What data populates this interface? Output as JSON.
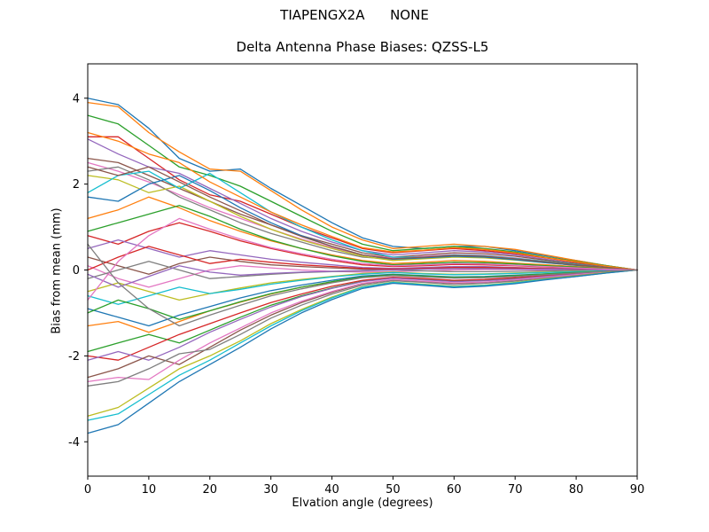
{
  "figure": {
    "suptitle": "TIAPENGX2A      NONE"
  },
  "chart_data": {
    "type": "line",
    "title": "Delta Antenna Phase Biases: QZSS-L5",
    "suptitle": "TIAPENGX2A      NONE",
    "xlabel": "Elvation angle (degrees)",
    "ylabel": "Bias from mean (mm)",
    "xlim": [
      0,
      90
    ],
    "ylim": [
      -4.8,
      4.8
    ],
    "xticks": [
      0,
      10,
      20,
      30,
      40,
      50,
      60,
      70,
      80,
      90
    ],
    "yticks": [
      -4,
      -2,
      0,
      2,
      4
    ],
    "grid": false,
    "legend": "none",
    "x": [
      0,
      5,
      10,
      15,
      20,
      25,
      30,
      35,
      40,
      45,
      50,
      55,
      60,
      65,
      70,
      75,
      80,
      85,
      90
    ],
    "series": [
      {
        "color": "#1f77b4",
        "values": [
          4.0,
          3.85,
          3.3,
          2.6,
          2.3,
          2.35,
          1.9,
          1.5,
          1.1,
          0.75,
          0.55,
          0.5,
          0.55,
          0.55,
          0.45,
          0.33,
          0.22,
          0.1,
          0.0
        ]
      },
      {
        "color": "#ff7f0e",
        "values": [
          3.9,
          3.8,
          3.2,
          2.75,
          2.35,
          2.3,
          1.85,
          1.4,
          1.0,
          0.7,
          0.5,
          0.55,
          0.6,
          0.55,
          0.48,
          0.35,
          0.22,
          0.1,
          0.0
        ]
      },
      {
        "color": "#2ca02c",
        "values": [
          3.6,
          3.4,
          2.9,
          2.4,
          2.2,
          1.95,
          1.6,
          1.25,
          0.9,
          0.6,
          0.45,
          0.5,
          0.55,
          0.5,
          0.42,
          0.3,
          0.2,
          0.1,
          0.0
        ]
      },
      {
        "color": "#d62728",
        "values": [
          3.1,
          3.1,
          2.6,
          2.1,
          1.75,
          1.6,
          1.3,
          1.0,
          0.75,
          0.5,
          0.4,
          0.45,
          0.5,
          0.45,
          0.38,
          0.28,
          0.18,
          0.08,
          0.0
        ]
      },
      {
        "color": "#9467bd",
        "values": [
          3.05,
          2.7,
          2.4,
          2.25,
          1.9,
          1.55,
          1.2,
          0.9,
          0.65,
          0.45,
          0.35,
          0.4,
          0.45,
          0.42,
          0.35,
          0.25,
          0.15,
          0.07,
          0.0
        ]
      },
      {
        "color": "#8c564b",
        "values": [
          2.6,
          2.5,
          2.2,
          1.9,
          1.6,
          1.3,
          1.05,
          0.8,
          0.6,
          0.4,
          0.3,
          0.35,
          0.4,
          0.38,
          0.32,
          0.23,
          0.15,
          0.07,
          0.0
        ]
      },
      {
        "color": "#e377c2",
        "values": [
          2.5,
          2.3,
          2.05,
          1.75,
          1.45,
          1.2,
          0.95,
          0.72,
          0.52,
          0.35,
          0.28,
          0.32,
          0.36,
          0.34,
          0.28,
          0.2,
          0.13,
          0.06,
          0.0
        ]
      },
      {
        "color": "#7f7f7f",
        "values": [
          2.3,
          2.4,
          2.1,
          1.7,
          1.4,
          1.1,
          0.85,
          0.65,
          0.45,
          0.3,
          0.25,
          0.28,
          0.32,
          0.3,
          0.25,
          0.18,
          0.12,
          0.05,
          0.0
        ]
      },
      {
        "color": "#bcbd22",
        "values": [
          2.2,
          2.1,
          1.8,
          1.95,
          1.6,
          1.25,
          0.95,
          0.7,
          0.5,
          0.32,
          0.22,
          0.26,
          0.3,
          0.28,
          0.23,
          0.17,
          0.11,
          0.05,
          0.0
        ]
      },
      {
        "color": "#17becf",
        "values": [
          1.8,
          2.2,
          2.3,
          1.9,
          2.25,
          1.8,
          1.35,
          1.0,
          0.7,
          0.45,
          0.3,
          0.3,
          0.35,
          0.33,
          0.27,
          0.2,
          0.13,
          0.06,
          0.0
        ]
      },
      {
        "color": "#1f77b4",
        "values": [
          1.7,
          1.6,
          2.0,
          2.2,
          1.85,
          1.45,
          1.1,
          0.8,
          0.55,
          0.35,
          0.25,
          0.28,
          0.32,
          0.3,
          0.24,
          0.17,
          0.11,
          0.05,
          0.0
        ]
      },
      {
        "color": "#ff7f0e",
        "values": [
          1.2,
          1.4,
          1.7,
          1.45,
          1.15,
          0.9,
          0.68,
          0.5,
          0.35,
          0.22,
          0.15,
          0.18,
          0.22,
          0.2,
          0.16,
          0.12,
          0.08,
          0.04,
          0.0
        ]
      },
      {
        "color": "#2ca02c",
        "values": [
          0.9,
          1.1,
          1.3,
          1.5,
          1.25,
          0.95,
          0.7,
          0.5,
          0.33,
          0.2,
          0.12,
          0.15,
          0.18,
          0.17,
          0.14,
          0.1,
          0.07,
          0.03,
          0.0
        ]
      },
      {
        "color": "#d62728",
        "values": [
          0.8,
          0.6,
          0.9,
          1.1,
          0.9,
          0.68,
          0.5,
          0.35,
          0.22,
          0.12,
          0.08,
          0.1,
          0.13,
          0.12,
          0.1,
          0.07,
          0.05,
          0.02,
          0.0
        ]
      },
      {
        "color": "#9467bd",
        "values": [
          0.5,
          0.7,
          0.5,
          0.3,
          0.45,
          0.35,
          0.25,
          0.18,
          0.12,
          0.06,
          0.04,
          0.06,
          0.08,
          0.08,
          0.06,
          0.04,
          0.03,
          0.01,
          0.0
        ]
      },
      {
        "color": "#8c564b",
        "values": [
          0.3,
          0.1,
          -0.1,
          0.15,
          0.3,
          0.2,
          0.12,
          0.08,
          0.05,
          0.02,
          0.0,
          0.02,
          0.04,
          0.04,
          0.03,
          0.02,
          0.01,
          0.01,
          0.0
        ]
      },
      {
        "color": "#e377c2",
        "values": [
          0.1,
          -0.2,
          -0.4,
          -0.2,
          0.0,
          0.1,
          0.05,
          0.0,
          -0.03,
          -0.05,
          -0.04,
          -0.02,
          0.0,
          0.01,
          0.01,
          0.0,
          0.0,
          0.0,
          0.0
        ]
      },
      {
        "color": "#7f7f7f",
        "values": [
          -0.2,
          0.0,
          0.2,
          0.0,
          -0.2,
          -0.15,
          -0.1,
          -0.06,
          -0.04,
          -0.02,
          0.0,
          -0.02,
          -0.04,
          -0.04,
          -0.03,
          -0.02,
          -0.01,
          0.0,
          0.0
        ]
      },
      {
        "color": "#bcbd22",
        "values": [
          -0.5,
          -0.3,
          -0.5,
          -0.7,
          -0.55,
          -0.42,
          -0.3,
          -0.22,
          -0.15,
          -0.08,
          -0.05,
          -0.08,
          -0.1,
          -0.09,
          -0.07,
          -0.05,
          -0.03,
          -0.01,
          0.0
        ]
      },
      {
        "color": "#17becf",
        "values": [
          -0.6,
          -0.8,
          -0.6,
          -0.4,
          -0.55,
          -0.45,
          -0.33,
          -0.24,
          -0.16,
          -0.1,
          -0.06,
          -0.09,
          -0.11,
          -0.1,
          -0.08,
          -0.06,
          -0.04,
          -0.02,
          0.0
        ]
      },
      {
        "color": "#1f77b4",
        "values": [
          -0.9,
          -1.1,
          -1.3,
          -1.05,
          -0.85,
          -0.65,
          -0.48,
          -0.35,
          -0.24,
          -0.14,
          -0.1,
          -0.13,
          -0.16,
          -0.15,
          -0.12,
          -0.09,
          -0.06,
          -0.03,
          0.0
        ]
      },
      {
        "color": "#ff7f0e",
        "values": [
          -1.3,
          -1.2,
          -1.45,
          -1.2,
          -0.95,
          -0.75,
          -0.56,
          -0.4,
          -0.28,
          -0.17,
          -0.12,
          -0.15,
          -0.18,
          -0.17,
          -0.14,
          -0.1,
          -0.07,
          -0.03,
          0.0
        ]
      },
      {
        "color": "#2ca02c",
        "values": [
          -1.9,
          -1.7,
          -1.5,
          -1.7,
          -1.4,
          -1.1,
          -0.82,
          -0.6,
          -0.42,
          -0.26,
          -0.18,
          -0.22,
          -0.26,
          -0.24,
          -0.2,
          -0.15,
          -0.1,
          -0.04,
          0.0
        ]
      },
      {
        "color": "#d62728",
        "values": [
          -2.0,
          -2.1,
          -1.8,
          -1.5,
          -1.25,
          -1.0,
          -0.76,
          -0.56,
          -0.38,
          -0.24,
          -0.17,
          -0.2,
          -0.24,
          -0.22,
          -0.18,
          -0.13,
          -0.09,
          -0.04,
          0.0
        ]
      },
      {
        "color": "#9467bd",
        "values": [
          -2.1,
          -1.9,
          -2.1,
          -1.8,
          -1.45,
          -1.15,
          -0.86,
          -0.62,
          -0.43,
          -0.27,
          -0.19,
          -0.23,
          -0.27,
          -0.25,
          -0.21,
          -0.15,
          -0.1,
          -0.05,
          0.0
        ]
      },
      {
        "color": "#8c564b",
        "values": [
          -2.5,
          -2.3,
          -2.0,
          -2.2,
          -1.8,
          -1.4,
          -1.05,
          -0.76,
          -0.52,
          -0.32,
          -0.23,
          -0.27,
          -0.31,
          -0.29,
          -0.24,
          -0.18,
          -0.12,
          -0.05,
          0.0
        ]
      },
      {
        "color": "#e377c2",
        "values": [
          -2.6,
          -2.5,
          -2.55,
          -2.1,
          -1.7,
          -1.35,
          -1.0,
          -0.73,
          -0.5,
          -0.31,
          -0.22,
          -0.26,
          -0.3,
          -0.28,
          -0.23,
          -0.17,
          -0.11,
          -0.05,
          0.0
        ]
      },
      {
        "color": "#7f7f7f",
        "values": [
          -2.7,
          -2.6,
          -2.3,
          -1.95,
          -1.85,
          -1.5,
          -1.12,
          -0.82,
          -0.56,
          -0.35,
          -0.25,
          -0.29,
          -0.34,
          -0.31,
          -0.26,
          -0.19,
          -0.13,
          -0.06,
          0.0
        ]
      },
      {
        "color": "#bcbd22",
        "values": [
          -3.4,
          -3.2,
          -2.75,
          -2.3,
          -2.0,
          -1.65,
          -1.25,
          -0.92,
          -0.63,
          -0.39,
          -0.28,
          -0.33,
          -0.38,
          -0.35,
          -0.29,
          -0.21,
          -0.14,
          -0.06,
          0.0
        ]
      },
      {
        "color": "#17becf",
        "values": [
          -3.5,
          -3.35,
          -2.9,
          -2.45,
          -2.1,
          -1.7,
          -1.3,
          -0.95,
          -0.65,
          -0.4,
          -0.29,
          -0.34,
          -0.39,
          -0.36,
          -0.3,
          -0.22,
          -0.15,
          -0.07,
          0.0
        ]
      },
      {
        "color": "#1f77b4",
        "values": [
          -3.8,
          -3.6,
          -3.1,
          -2.6,
          -2.2,
          -1.8,
          -1.37,
          -1.0,
          -0.69,
          -0.43,
          -0.31,
          -0.36,
          -0.41,
          -0.38,
          -0.32,
          -0.23,
          -0.15,
          -0.07,
          0.0
        ]
      },
      {
        "color": "#ff7f0e",
        "values": [
          3.2,
          3.0,
          2.7,
          2.5,
          2.05,
          1.7,
          1.35,
          1.05,
          0.78,
          0.52,
          0.42,
          0.46,
          0.52,
          0.48,
          0.4,
          0.29,
          0.19,
          0.09,
          0.0
        ]
      },
      {
        "color": "#2ca02c",
        "values": [
          -1.0,
          -0.7,
          -0.9,
          -1.15,
          -0.95,
          -0.74,
          -0.55,
          -0.4,
          -0.27,
          -0.16,
          -0.11,
          -0.14,
          -0.17,
          -0.16,
          -0.13,
          -0.09,
          -0.06,
          -0.03,
          0.0
        ]
      },
      {
        "color": "#d62728",
        "values": [
          0.0,
          0.3,
          0.55,
          0.35,
          0.15,
          0.25,
          0.18,
          0.12,
          0.08,
          0.04,
          0.02,
          0.04,
          0.06,
          0.06,
          0.05,
          0.03,
          0.02,
          0.01,
          0.0
        ]
      },
      {
        "color": "#9467bd",
        "values": [
          -0.1,
          -0.4,
          -0.15,
          0.1,
          -0.05,
          -0.12,
          -0.08,
          -0.05,
          -0.03,
          -0.01,
          0.0,
          0.02,
          0.03,
          0.03,
          0.02,
          0.02,
          0.01,
          0.0,
          0.0
        ]
      },
      {
        "color": "#8c564b",
        "values": [
          2.4,
          2.2,
          2.4,
          2.05,
          1.7,
          1.38,
          1.05,
          0.78,
          0.55,
          0.35,
          0.26,
          0.3,
          0.34,
          0.32,
          0.26,
          0.19,
          0.12,
          0.06,
          0.0
        ]
      },
      {
        "color": "#e377c2",
        "values": [
          -0.7,
          0.2,
          0.8,
          1.2,
          0.95,
          0.72,
          0.52,
          0.38,
          0.25,
          0.15,
          0.1,
          0.12,
          0.15,
          0.14,
          0.11,
          0.08,
          0.05,
          0.02,
          0.0
        ]
      },
      {
        "color": "#7f7f7f",
        "values": [
          0.6,
          -0.3,
          -0.9,
          -1.3,
          -1.05,
          -0.82,
          -0.6,
          -0.44,
          -0.3,
          -0.18,
          -0.13,
          -0.16,
          -0.19,
          -0.18,
          -0.15,
          -0.11,
          -0.07,
          -0.03,
          0.0
        ]
      }
    ]
  }
}
